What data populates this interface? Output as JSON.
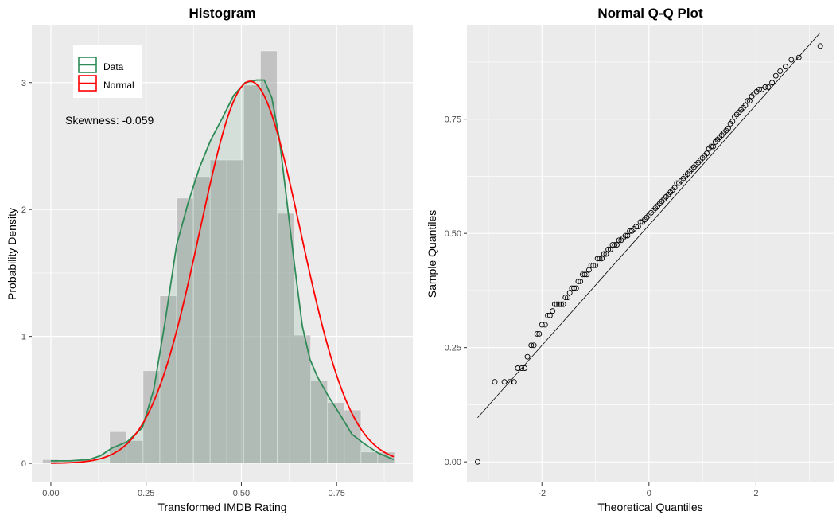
{
  "chart_data": [
    {
      "type": "histogram",
      "title": "Histogram",
      "xlabel": "Transformed IMDB Rating",
      "ylabel": "Probability Density",
      "xlim": [
        -0.05,
        0.95
      ],
      "ylim": [
        -0.15,
        3.45
      ],
      "x_ticks": [
        0.0,
        0.25,
        0.5,
        0.75
      ],
      "x_tick_labels": [
        "0.00",
        "0.25",
        "0.50",
        "0.75"
      ],
      "y_ticks": [
        0,
        1,
        2,
        3
      ],
      "y_tick_labels": [
        "0",
        "1",
        "2",
        "3"
      ],
      "grid": true,
      "legend": [
        "Data",
        "Normal"
      ],
      "legend_colors": [
        "#2e8b57",
        "#ff0000"
      ],
      "legend_position": "top-left",
      "annotation": "Skewness: -0.059",
      "bins": [
        {
          "x0": -0.022,
          "x1": 0.022,
          "value": 0.03
        },
        {
          "x0": 0.022,
          "x1": 0.066,
          "value": 0.0
        },
        {
          "x0": 0.066,
          "x1": 0.11,
          "value": 0.0
        },
        {
          "x0": 0.11,
          "x1": 0.154,
          "value": 0.0
        },
        {
          "x0": 0.154,
          "x1": 0.198,
          "value": 0.25
        },
        {
          "x0": 0.198,
          "x1": 0.242,
          "value": 0.18
        },
        {
          "x0": 0.242,
          "x1": 0.286,
          "value": 0.73
        },
        {
          "x0": 0.286,
          "x1": 0.33,
          "value": 1.32
        },
        {
          "x0": 0.33,
          "x1": 0.374,
          "value": 2.09
        },
        {
          "x0": 0.374,
          "x1": 0.418,
          "value": 2.26
        },
        {
          "x0": 0.418,
          "x1": 0.462,
          "value": 2.39
        },
        {
          "x0": 0.462,
          "x1": 0.506,
          "value": 2.39
        },
        {
          "x0": 0.506,
          "x1": 0.55,
          "value": 2.98
        },
        {
          "x0": 0.55,
          "x1": 0.594,
          "value": 3.25
        },
        {
          "x0": 0.594,
          "x1": 0.638,
          "value": 1.97
        },
        {
          "x0": 0.638,
          "x1": 0.682,
          "value": 1.01
        },
        {
          "x0": 0.682,
          "x1": 0.726,
          "value": 0.65
        },
        {
          "x0": 0.726,
          "x1": 0.77,
          "value": 0.48
        },
        {
          "x0": 0.77,
          "x1": 0.814,
          "value": 0.42
        },
        {
          "x0": 0.814,
          "x1": 0.858,
          "value": 0.09
        },
        {
          "x0": 0.858,
          "x1": 0.902,
          "value": 0.09
        }
      ],
      "density_data": {
        "x": [
          0.0,
          0.05,
          0.1,
          0.13,
          0.16,
          0.2,
          0.24,
          0.27,
          0.3,
          0.33,
          0.36,
          0.39,
          0.42,
          0.45,
          0.48,
          0.51,
          0.54,
          0.56,
          0.58,
          0.6,
          0.62,
          0.64,
          0.66,
          0.68,
          0.7,
          0.73,
          0.76,
          0.79,
          0.82,
          0.86,
          0.9
        ],
        "y": [
          0.02,
          0.02,
          0.03,
          0.06,
          0.12,
          0.17,
          0.28,
          0.58,
          1.12,
          1.72,
          2.05,
          2.33,
          2.55,
          2.72,
          2.9,
          3.0,
          3.02,
          3.02,
          2.88,
          2.55,
          2.05,
          1.55,
          1.08,
          0.82,
          0.68,
          0.52,
          0.38,
          0.23,
          0.16,
          0.08,
          0.03
        ]
      },
      "normal_curve": {
        "mean": 0.523,
        "sd": 0.1325
      }
    },
    {
      "type": "scatter",
      "title": "Normal Q-Q Plot",
      "xlabel": "Theoretical Quantiles",
      "ylabel": "Sample Quantiles",
      "xlim": [
        -3.4,
        3.45
      ],
      "ylim": [
        -0.045,
        0.955
      ],
      "x_ticks": [
        -2,
        0,
        2
      ],
      "x_tick_labels": [
        "-2",
        "0",
        "2"
      ],
      "y_ticks": [
        0.0,
        0.25,
        0.5,
        0.75
      ],
      "y_tick_labels": [
        "0.00",
        "0.25",
        "0.50",
        "0.75"
      ],
      "grid": true,
      "reference_line": {
        "x": [
          -3.2,
          3.2
        ],
        "y": [
          0.0966,
          0.9394
        ]
      },
      "points": {
        "x": [
          -3.2,
          -2.88,
          -2.7,
          -2.6,
          -2.52,
          -2.45,
          -2.38,
          -2.32,
          -2.27,
          -2.2,
          -2.15,
          -2.09,
          -2.05,
          -2.0,
          -1.94,
          -1.89,
          -1.85,
          -1.8,
          -1.76,
          -1.72,
          -1.68,
          -1.64,
          -1.6,
          -1.56,
          -1.52,
          -1.48,
          -1.44,
          -1.4,
          -1.36,
          -1.32,
          -1.28,
          -1.24,
          -1.2,
          -1.16,
          -1.12,
          -1.08,
          -1.04,
          -1.0,
          -0.96,
          -0.92,
          -0.88,
          -0.84,
          -0.8,
          -0.76,
          -0.72,
          -0.68,
          -0.64,
          -0.6,
          -0.56,
          -0.52,
          -0.48,
          -0.44,
          -0.4,
          -0.36,
          -0.32,
          -0.28,
          -0.24,
          -0.2,
          -0.16,
          -0.12,
          -0.08,
          -0.04,
          0.0,
          0.04,
          0.08,
          0.12,
          0.16,
          0.2,
          0.24,
          0.28,
          0.32,
          0.36,
          0.4,
          0.44,
          0.48,
          0.52,
          0.56,
          0.6,
          0.64,
          0.68,
          0.72,
          0.76,
          0.8,
          0.84,
          0.88,
          0.92,
          0.96,
          1.0,
          1.04,
          1.08,
          1.12,
          1.16,
          1.2,
          1.24,
          1.28,
          1.32,
          1.36,
          1.4,
          1.44,
          1.48,
          1.52,
          1.56,
          1.6,
          1.64,
          1.68,
          1.72,
          1.76,
          1.8,
          1.84,
          1.88,
          1.92,
          1.96,
          2.01,
          2.06,
          2.11,
          2.17,
          2.23,
          2.3,
          2.37,
          2.45,
          2.55,
          2.66,
          2.8,
          3.2
        ],
        "y": [
          0.0,
          0.175,
          0.175,
          0.175,
          0.175,
          0.205,
          0.205,
          0.205,
          0.23,
          0.255,
          0.255,
          0.28,
          0.28,
          0.3,
          0.3,
          0.32,
          0.32,
          0.33,
          0.345,
          0.345,
          0.345,
          0.345,
          0.345,
          0.36,
          0.36,
          0.37,
          0.38,
          0.38,
          0.38,
          0.395,
          0.395,
          0.41,
          0.41,
          0.41,
          0.42,
          0.43,
          0.43,
          0.43,
          0.445,
          0.445,
          0.445,
          0.455,
          0.455,
          0.465,
          0.465,
          0.475,
          0.475,
          0.475,
          0.485,
          0.485,
          0.49,
          0.495,
          0.495,
          0.505,
          0.505,
          0.51,
          0.515,
          0.515,
          0.525,
          0.525,
          0.53,
          0.535,
          0.54,
          0.545,
          0.55,
          0.555,
          0.56,
          0.565,
          0.57,
          0.575,
          0.58,
          0.585,
          0.59,
          0.595,
          0.6,
          0.61,
          0.61,
          0.615,
          0.62,
          0.625,
          0.63,
          0.635,
          0.64,
          0.645,
          0.65,
          0.655,
          0.66,
          0.665,
          0.67,
          0.675,
          0.685,
          0.69,
          0.69,
          0.7,
          0.705,
          0.71,
          0.715,
          0.72,
          0.725,
          0.73,
          0.74,
          0.745,
          0.755,
          0.76,
          0.765,
          0.77,
          0.775,
          0.78,
          0.79,
          0.79,
          0.8,
          0.805,
          0.81,
          0.815,
          0.815,
          0.82,
          0.82,
          0.83,
          0.845,
          0.855,
          0.865,
          0.88,
          0.885,
          0.91
        ]
      }
    }
  ]
}
